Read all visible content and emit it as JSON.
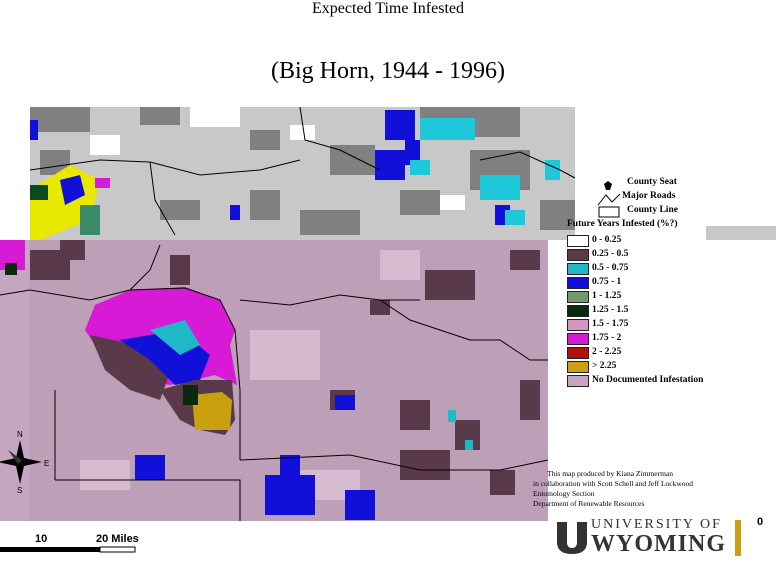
{
  "title": "Expected Time Infested",
  "subtitle": "(Big Horn, 1944 - 1996)",
  "legend": {
    "county_seat": "County Seat",
    "major_roads": "Major Roads",
    "county_line": "County Line",
    "header": "Future Years Infested (%?)",
    "classes": [
      {
        "label": "0 - 0.25",
        "color": "#ffffff"
      },
      {
        "label": "0.25 - 0.5",
        "color": "#5a3a4a"
      },
      {
        "label": "0.5 - 0.75",
        "color": "#1fb8c8"
      },
      {
        "label": "0.75 - 1",
        "color": "#1010d8"
      },
      {
        "label": "1 - 1.25",
        "color": "#6e9a6e"
      },
      {
        "label": "1.25 - 1.5",
        "color": "#0a2a10"
      },
      {
        "label": "1.5 - 1.75",
        "color": "#d496c4"
      },
      {
        "label": "1.75 - 2",
        "color": "#d61ad6"
      },
      {
        "label": "2 - 2.25",
        "color": "#b01010"
      },
      {
        "label": "> 2.25",
        "color": "#c8a010"
      },
      {
        "label": "No Documented Infestation",
        "color": "#c4a6c0"
      }
    ]
  },
  "credits": [
    "This map produced by Kiana Zimmerman",
    "in collaboration with Scott Schell and Jeff Lockwood",
    "Entomology Section",
    "Department of Renewable Resources"
  ],
  "university": {
    "line1": "UNIVERSITY OF",
    "line2": "WYOMING"
  },
  "scale": {
    "labels": [
      "10",
      "20 Miles"
    ]
  },
  "corner_value": "0",
  "compass": [
    "N",
    "E",
    "S"
  ]
}
